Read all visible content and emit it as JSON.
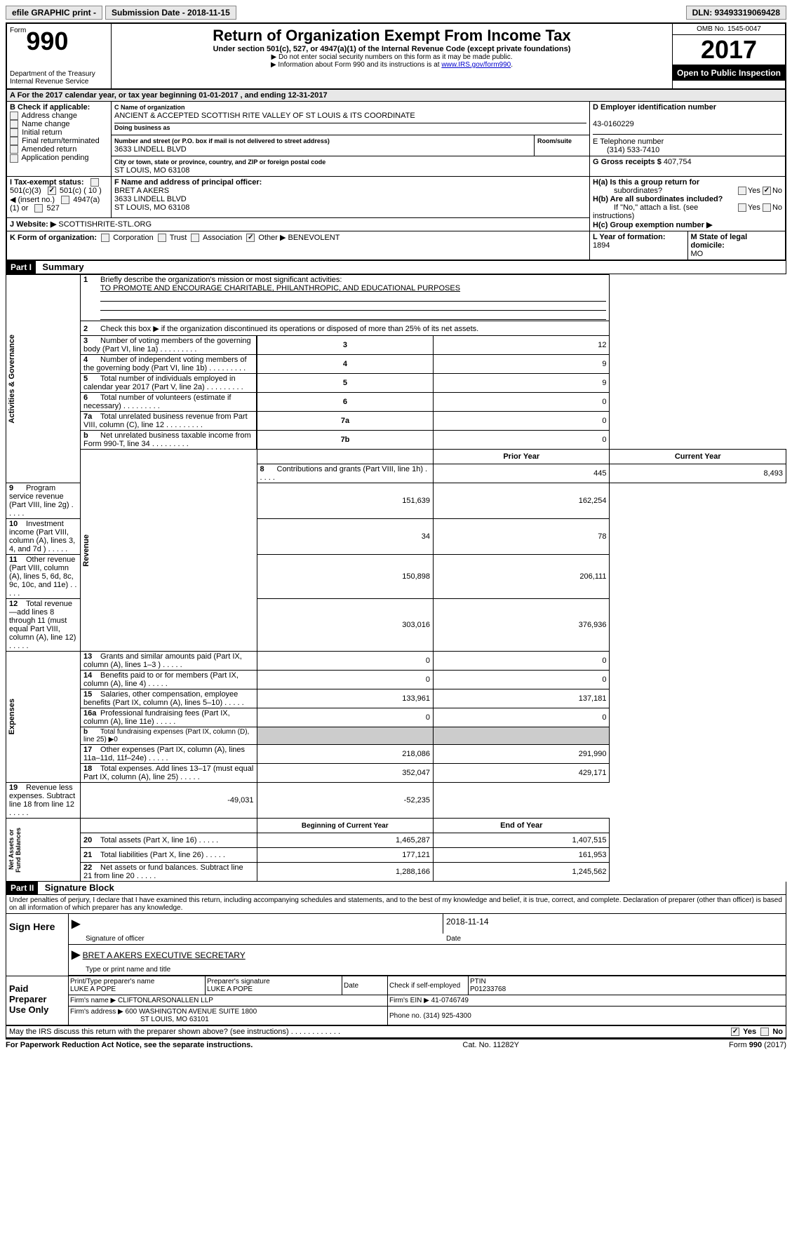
{
  "top": {
    "efile": "efile GRAPHIC print -",
    "submission": "Submission Date - 2018-11-15",
    "dln": "DLN: 93493319069428"
  },
  "header": {
    "form_label": "Form",
    "form_num": "990",
    "dept": "Department of the Treasury",
    "irs": "Internal Revenue Service",
    "title": "Return of Organization Exempt From Income Tax",
    "subtitle": "Under section 501(c), 527, or 4947(a)(1) of the Internal Revenue Code (except private foundations)",
    "note1": "▶ Do not enter social security numbers on this form as it may be made public.",
    "note2_prefix": "▶ Information about Form 990 and its instructions is at ",
    "note2_link": "www.IRS.gov/form990",
    "omb": "OMB No. 1545-0047",
    "year": "2017",
    "inspection": "Open to Public Inspection"
  },
  "section_a": {
    "line": "A  For the 2017 calendar year, or tax year beginning 01-01-2017   , and ending 12-31-2017"
  },
  "section_b": {
    "title": "B Check if applicable:",
    "items": [
      "Address change",
      "Name change",
      "Initial return",
      "Final return/terminated",
      "Amended return",
      "Application pending"
    ]
  },
  "section_c": {
    "label": "C Name of organization",
    "name": "ANCIENT & ACCEPTED SCOTTISH RITE VALLEY OF ST LOUIS & ITS COORDINATE",
    "dba_label": "Doing business as",
    "street_label": "Number and street (or P.O. box if mail is not delivered to street address)",
    "room_label": "Room/suite",
    "street": "3633 LINDELL BLVD",
    "city_label": "City or town, state or province, country, and ZIP or foreign postal code",
    "city": "ST LOUIS, MO  63108"
  },
  "section_d": {
    "label": "D Employer identification number",
    "value": "43-0160229"
  },
  "section_e": {
    "label": "E Telephone number",
    "value": "(314) 533-7410"
  },
  "section_g": {
    "label": "G Gross receipts $ ",
    "value": "407,754"
  },
  "section_f": {
    "label": "F  Name and address of principal officer:",
    "name": "BRET A AKERS",
    "street": "3633 LINDELL BLVD",
    "city": "ST LOUIS, MO  63108"
  },
  "section_h": {
    "ha_label": "H(a)  Is this a group return for",
    "ha_sub": "subordinates?",
    "hb_label": "H(b)  Are all subordinates included?",
    "hb_note": "If \"No,\" attach a list. (see instructions)",
    "hc_label": "H(c)  Group exemption number ▶",
    "yes": "Yes",
    "no": "No"
  },
  "section_i": {
    "label": "I  Tax-exempt status:",
    "opts": [
      "501(c)(3)",
      "501(c) ( 10 ) ◀ (insert no.)",
      "4947(a)(1) or",
      "527"
    ]
  },
  "section_j": {
    "label": "J  Website: ▶",
    "value": "SCOTTISHRITE-STL.ORG"
  },
  "section_k": {
    "label": "K Form of organization:",
    "opts": [
      "Corporation",
      "Trust",
      "Association",
      "Other ▶"
    ],
    "other": "BENEVOLENT"
  },
  "section_l": {
    "label": "L Year of formation: ",
    "value": "1894"
  },
  "section_m": {
    "label": "M State of legal domicile:",
    "value": "MO"
  },
  "part1": {
    "header": "Part I",
    "title": "Summary",
    "side_labels": [
      "Activities & Governance",
      "Revenue",
      "Expenses",
      "Net Assets or Fund Balances"
    ],
    "line1": "Briefly describe the organization's mission or most significant activities:",
    "line1_val": "TO PROMOTE AND ENCOURAGE CHARITABLE, PHILANTHROPIC, AND EDUCATIONAL PURPOSES",
    "line2": "Check this box ▶      if the organization discontinued its operations or disposed of more than 25% of its net assets.",
    "lines_gov": [
      {
        "n": "3",
        "t": "Number of voting members of the governing body (Part VI, line 1a)",
        "v": "12"
      },
      {
        "n": "4",
        "t": "Number of independent voting members of the governing body (Part VI, line 1b)",
        "v": "9"
      },
      {
        "n": "5",
        "t": "Total number of individuals employed in calendar year 2017 (Part V, line 2a)",
        "v": "9"
      },
      {
        "n": "6",
        "t": "Total number of volunteers (estimate if necessary)",
        "v": "0"
      },
      {
        "n": "7a",
        "t": "Total unrelated business revenue from Part VIII, column (C), line 12",
        "v": "0"
      },
      {
        "n": "b",
        "t": "Net unrelated business taxable income from Form 990-T, line 34",
        "id": "7b",
        "v": "0"
      }
    ],
    "col_prior": "Prior Year",
    "col_current": "Current Year",
    "lines_rev": [
      {
        "n": "8",
        "t": "Contributions and grants (Part VIII, line 1h)",
        "p": "445",
        "c": "8,493"
      },
      {
        "n": "9",
        "t": "Program service revenue (Part VIII, line 2g)",
        "p": "151,639",
        "c": "162,254"
      },
      {
        "n": "10",
        "t": "Investment income (Part VIII, column (A), lines 3, 4, and 7d )",
        "p": "34",
        "c": "78"
      },
      {
        "n": "11",
        "t": "Other revenue (Part VIII, column (A), lines 5, 6d, 8c, 9c, 10c, and 11e)",
        "p": "150,898",
        "c": "206,111"
      },
      {
        "n": "12",
        "t": "Total revenue—add lines 8 through 11 (must equal Part VIII, column (A), line 12)",
        "p": "303,016",
        "c": "376,936"
      }
    ],
    "lines_exp": [
      {
        "n": "13",
        "t": "Grants and similar amounts paid (Part IX, column (A), lines 1–3 )",
        "p": "0",
        "c": "0"
      },
      {
        "n": "14",
        "t": "Benefits paid to or for members (Part IX, column (A), line 4)",
        "p": "0",
        "c": "0"
      },
      {
        "n": "15",
        "t": "Salaries, other compensation, employee benefits (Part IX, column (A), lines 5–10)",
        "p": "133,961",
        "c": "137,181"
      },
      {
        "n": "16a",
        "t": "Professional fundraising fees (Part IX, column (A), line 11e)",
        "p": "0",
        "c": "0"
      },
      {
        "n": "b",
        "t": "Total fundraising expenses (Part IX, column (D), line 25) ▶0",
        "gray": true
      },
      {
        "n": "17",
        "t": "Other expenses (Part IX, column (A), lines 11a–11d, 11f–24e)",
        "p": "218,086",
        "c": "291,990"
      },
      {
        "n": "18",
        "t": "Total expenses. Add lines 13–17 (must equal Part IX, column (A), line 25)",
        "p": "352,047",
        "c": "429,171"
      },
      {
        "n": "19",
        "t": "Revenue less expenses. Subtract line 18 from line 12",
        "p": "-49,031",
        "c": "-52,235"
      }
    ],
    "col_begin": "Beginning of Current Year",
    "col_end": "End of Year",
    "lines_net": [
      {
        "n": "20",
        "t": "Total assets (Part X, line 16)",
        "p": "1,465,287",
        "c": "1,407,515"
      },
      {
        "n": "21",
        "t": "Total liabilities (Part X, line 26)",
        "p": "177,121",
        "c": "161,953"
      },
      {
        "n": "22",
        "t": "Net assets or fund balances. Subtract line 21 from line 20",
        "p": "1,288,166",
        "c": "1,245,562"
      }
    ]
  },
  "part2": {
    "header": "Part II",
    "title": "Signature Block",
    "perjury": "Under penalties of perjury, I declare that I have examined this return, including accompanying schedules and statements, and to the best of my knowledge and belief, it is true, correct, and complete. Declaration of preparer (other than officer) is based on all information of which preparer has any knowledge.",
    "sign_here": "Sign Here",
    "sig_date": "2018-11-14",
    "sig_officer_label": "Signature of officer",
    "date_label": "Date",
    "officer_name": "BRET A AKERS EXECUTIVE SECRETARY",
    "type_name_label": "Type or print name and title",
    "paid_label": "Paid Preparer Use Only",
    "prep_name_label": "Print/Type preparer's name",
    "prep_name": "LUKE A POPE",
    "prep_sig_label": "Preparer's signature",
    "prep_sig": "LUKE A POPE",
    "prep_date_label": "Date",
    "check_self": "Check      if self-employed",
    "ptin_label": "PTIN",
    "ptin": "P01233768",
    "firm_name_label": "Firm's name    ▶",
    "firm_name": "CLIFTONLARSONALLEN LLP",
    "firm_ein_label": "Firm's EIN ▶",
    "firm_ein": "41-0746749",
    "firm_addr_label": "Firm's address ▶",
    "firm_addr": "600 WASHINGTON AVENUE SUITE 1800",
    "firm_city": "ST LOUIS, MO  63101",
    "phone_label": "Phone no.",
    "phone": "(314) 925-4300",
    "discuss": "May the IRS discuss this return with the preparer shown above? (see instructions)",
    "yes": "Yes",
    "no": "No"
  },
  "footer": {
    "paperwork": "For Paperwork Reduction Act Notice, see the separate instructions.",
    "cat": "Cat. No. 11282Y",
    "form": "Form 990 (2017)"
  }
}
